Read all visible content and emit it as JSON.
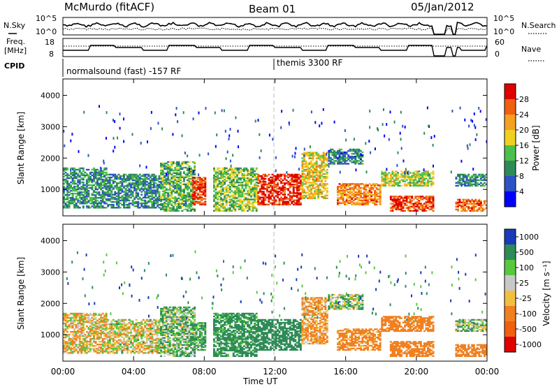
{
  "header": {
    "station": "McMurdo (fitACF)",
    "beam": "Beam 01",
    "date": "05/Jan/2012"
  },
  "noise_panel": {
    "left_label": "N.Sky",
    "left_ticks": [
      "10^5",
      "10^0"
    ],
    "right_label": "N.Search",
    "right_ticks": [
      "10^5",
      "10^0"
    ]
  },
  "freq_panel": {
    "left_label_1": "Freq.",
    "left_label_2": "[MHz]",
    "left_ticks": [
      "18",
      "8"
    ],
    "right_label": "Nave",
    "right_ticks": [
      "60",
      "0"
    ]
  },
  "cpid": {
    "label": "CPID",
    "mode1": "normalsound (fast) -157 RF",
    "mode2": "themis 3300 RF"
  },
  "xaxis": {
    "label": "Time UT",
    "ticks": [
      "00:00",
      "04:00",
      "08:00",
      "12:00",
      "16:00",
      "20:00",
      "00:00"
    ]
  },
  "power_panel": {
    "ylabel": "Slant Range [km]",
    "yticks": [
      "1000",
      "2000",
      "3000",
      "4000"
    ],
    "colorbar_label": "Power [dB]",
    "colorbar_ticks": [
      "4",
      "8",
      "12",
      "16",
      "20",
      "24",
      "28"
    ],
    "colors": [
      "#0000ff",
      "#2e52c8",
      "#2e8b57",
      "#4cc04c",
      "#f0d020",
      "#f4a020",
      "#f06010",
      "#e00000"
    ]
  },
  "velocity_panel": {
    "ylabel": "Slant Range [km]",
    "yticks": [
      "1000",
      "2000",
      "3000",
      "4000"
    ],
    "colorbar_label": "Velocity [m s⁻¹]",
    "colorbar_ticks": [
      "1000",
      "500",
      "100",
      "25",
      "-25",
      "-100",
      "-500",
      "-1000"
    ],
    "colors": [
      "#1a3ab8",
      "#2e8b57",
      "#58c840",
      "#c8c8c8",
      "#f0c040",
      "#f08020",
      "#f06010",
      "#e00000"
    ]
  },
  "chart_data": {
    "type": "heatmap",
    "title": "McMurdo (fitACF) Beam 01 05/Jan/2012",
    "xlabel": "Time UT",
    "ylabel": "Slant Range [km]",
    "x_range_hours": [
      0,
      24
    ],
    "y_range_km": [
      180,
      4500
    ],
    "power_scale_dB": [
      0,
      30
    ],
    "velocity_scale_ms": [
      -1000,
      1000
    ],
    "cpid_modes": [
      {
        "mode": "normalsound (fast) -157 RF",
        "start_hour": 0,
        "end_hour": 12
      },
      {
        "mode": "themis 3300 RF",
        "start_hour": 12,
        "end_hour": 24
      }
    ],
    "data_gaps_hours": [
      [
        21.0,
        21.6
      ],
      [
        22.0,
        22.2
      ]
    ],
    "scatter_bands": [
      {
        "start_hour": 0.0,
        "end_hour": 2.5,
        "range_km": [
          400,
          1700
        ],
        "power_dB": 10,
        "velocity": -60
      },
      {
        "start_hour": 2.5,
        "end_hour": 5.5,
        "range_km": [
          400,
          1500
        ],
        "power_dB": 9,
        "velocity": -30
      },
      {
        "start_hour": 5.5,
        "end_hour": 7.5,
        "range_km": [
          300,
          1900
        ],
        "power_dB": 12,
        "velocity": 80
      },
      {
        "start_hour": 7.3,
        "end_hour": 8.1,
        "range_km": [
          500,
          1400
        ],
        "power_dB": 26,
        "velocity": 150
      },
      {
        "start_hour": 8.5,
        "end_hour": 11.0,
        "range_km": [
          300,
          1700
        ],
        "power_dB": 14,
        "velocity": 200
      },
      {
        "start_hour": 11.0,
        "end_hour": 13.5,
        "range_km": [
          500,
          1500
        ],
        "power_dB": 27,
        "velocity": 300
      },
      {
        "start_hour": 13.5,
        "end_hour": 15.0,
        "range_km": [
          700,
          2200
        ],
        "power_dB": 18,
        "velocity": -150
      },
      {
        "start_hour": 15.0,
        "end_hour": 17.0,
        "range_km": [
          1800,
          2300
        ],
        "power_dB": 8,
        "velocity": 40
      },
      {
        "start_hour": 15.5,
        "end_hour": 18.0,
        "range_km": [
          500,
          1200
        ],
        "power_dB": 22,
        "velocity": -200
      },
      {
        "start_hour": 18.0,
        "end_hour": 21.0,
        "range_km": [
          1100,
          1600
        ],
        "power_dB": 16,
        "velocity": -250
      },
      {
        "start_hour": 18.5,
        "end_hour": 21.0,
        "range_km": [
          300,
          800
        ],
        "power_dB": 26,
        "velocity": -350
      },
      {
        "start_hour": 22.2,
        "end_hour": 24.0,
        "range_km": [
          300,
          700
        ],
        "power_dB": 24,
        "velocity": -300
      },
      {
        "start_hour": 22.2,
        "end_hour": 24.0,
        "range_km": [
          1100,
          1500
        ],
        "power_dB": 9,
        "velocity": 50
      }
    ]
  }
}
